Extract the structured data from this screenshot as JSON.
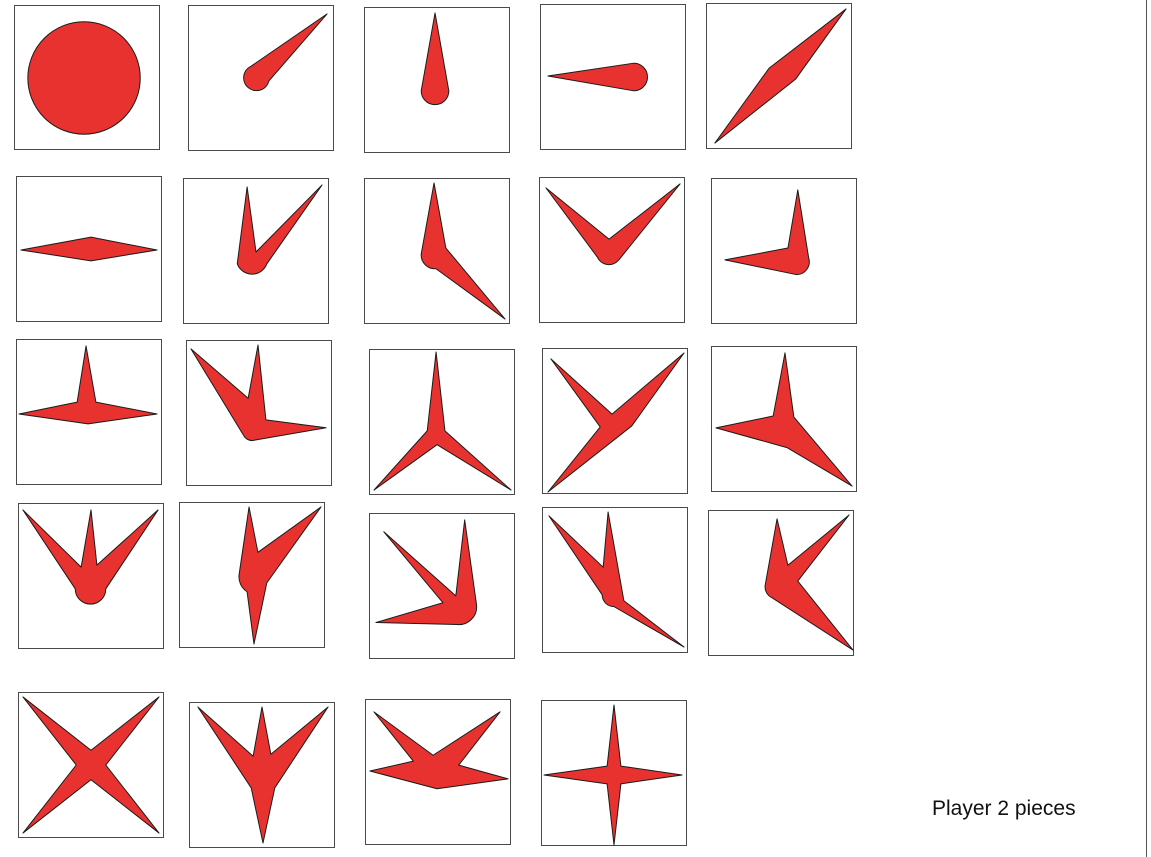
{
  "caption": "Player 2 pieces",
  "colors": {
    "piece_fill": "#e8322f",
    "piece_outline": "#1a1a1a",
    "tile_border": "#4a4a4a"
  },
  "pieces": [
    {
      "id": 1,
      "icon": "circle-piece-icon"
    },
    {
      "id": 2,
      "icon": "single-point-diagonal-icon"
    },
    {
      "id": 3,
      "icon": "single-point-up-icon"
    },
    {
      "id": 4,
      "icon": "single-point-left-icon"
    },
    {
      "id": 5,
      "icon": "double-point-diagonal-icon"
    },
    {
      "id": 6,
      "icon": "double-point-horizontal-icon"
    },
    {
      "id": 7,
      "icon": "narrow-v-icon"
    },
    {
      "id": 8,
      "icon": "bent-up-down-right-icon"
    },
    {
      "id": 9,
      "icon": "wide-v-icon"
    },
    {
      "id": 10,
      "icon": "up-left-angle-icon"
    },
    {
      "id": 11,
      "icon": "three-point-up-left-right-icon"
    },
    {
      "id": 12,
      "icon": "three-point-ul-up-right-icon"
    },
    {
      "id": 13,
      "icon": "three-point-tripod-icon"
    },
    {
      "id": 14,
      "icon": "three-point-chevron-right-icon"
    },
    {
      "id": 15,
      "icon": "three-point-up-left-downright-icon"
    },
    {
      "id": 16,
      "icon": "three-point-trident-icon"
    },
    {
      "id": 17,
      "icon": "three-point-up-ur-down-icon"
    },
    {
      "id": 18,
      "icon": "angle-ul-left-icon"
    },
    {
      "id": 19,
      "icon": "three-point-ul-up-downright-icon"
    },
    {
      "id": 20,
      "icon": "three-point-up-ur-downright-icon"
    },
    {
      "id": 21,
      "icon": "four-point-x-icon"
    },
    {
      "id": 22,
      "icon": "four-point-y-icon"
    },
    {
      "id": 23,
      "icon": "four-point-wide-fan-icon"
    },
    {
      "id": 24,
      "icon": "four-point-star-icon"
    }
  ]
}
